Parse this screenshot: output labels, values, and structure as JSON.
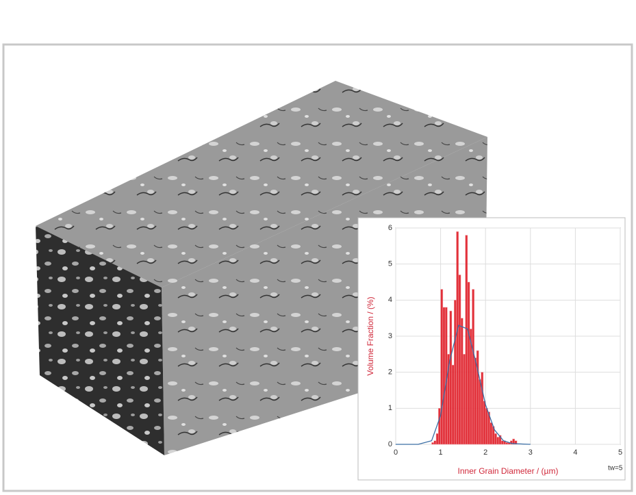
{
  "chart_data": {
    "type": "histogram",
    "xlabel": "Inner Grain Diameter / (µm)",
    "ylabel": "Volume Fraction / (%)",
    "annotation": "tw=5",
    "bins": [
      0.8,
      0.85,
      0.9,
      0.95,
      1.0,
      1.05,
      1.1,
      1.15,
      1.2,
      1.25,
      1.3,
      1.35,
      1.4,
      1.45,
      1.5,
      1.55,
      1.6,
      1.65,
      1.7,
      1.75,
      1.8,
      1.85,
      1.9,
      1.95,
      2.0,
      2.05,
      2.1,
      2.15,
      2.2,
      2.25,
      2.3,
      2.35,
      2.4,
      2.45,
      2.5,
      2.55,
      2.6,
      2.65,
      2.7
    ],
    "counts": [
      0.05,
      0.1,
      0.3,
      1.0,
      4.3,
      3.8,
      3.8,
      2.5,
      3.7,
      2.2,
      4.0,
      5.9,
      4.7,
      3.5,
      2.5,
      5.8,
      4.5,
      3.2,
      4.3,
      2.4,
      2.6,
      1.8,
      2.0,
      1.2,
      1.0,
      0.9,
      0.6,
      0.5,
      0.3,
      0.2,
      0.25,
      0.1,
      0.1,
      0.05,
      0.05,
      0.1,
      0.15,
      0.1
    ],
    "color": "#e0202a",
    "fit": {
      "x": [
        0,
        0.5,
        0.8,
        1.0,
        1.2,
        1.4,
        1.6,
        1.8,
        2.0,
        2.2,
        2.4,
        2.6,
        3.0
      ],
      "values": [
        0,
        0,
        0.1,
        0.8,
        2.3,
        3.3,
        3.2,
        2.2,
        1.1,
        0.4,
        0.1,
        0.02,
        0
      ],
      "color": "#3a6ea5"
    },
    "xlim": [
      0,
      5
    ],
    "xticks": [
      0,
      1,
      2,
      3,
      4,
      5
    ],
    "ylim": [
      0,
      6
    ],
    "yticks": [
      0,
      1,
      2,
      3,
      4,
      5,
      6
    ],
    "grid": true
  }
}
